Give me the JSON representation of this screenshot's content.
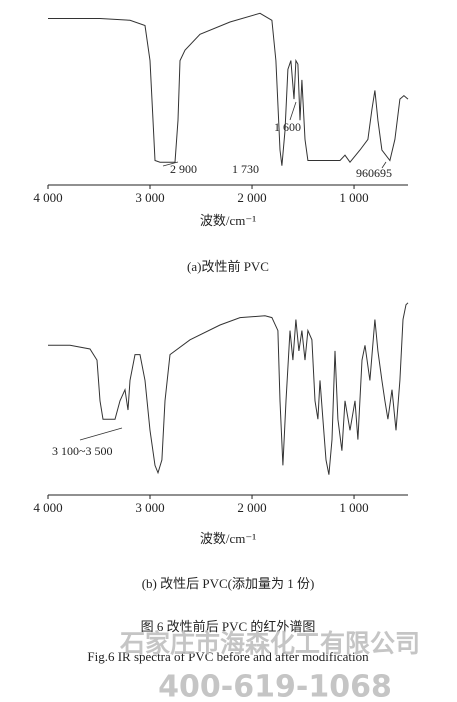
{
  "chart_data": [
    {
      "type": "line",
      "xlabel": "波数/cm⁻¹",
      "caption": "(a)改性前 PVC",
      "xlim": [
        4000,
        471
      ],
      "ylim": [
        0,
        105
      ],
      "xticks": [
        {
          "value": 4000,
          "label": "4 000"
        },
        {
          "value": 3000,
          "label": "3 000"
        },
        {
          "value": 2000,
          "label": "2 000"
        },
        {
          "value": 1000,
          "label": "1 000"
        }
      ],
      "annotations": [
        "2 900",
        "1 730",
        "1 600",
        "960",
        "695"
      ],
      "x": [
        4000,
        3490,
        3196,
        3049,
        3000,
        2971,
        2951,
        2902,
        2755,
        2726,
        2706,
        2657,
        2510,
        2216,
        1922,
        1805,
        1766,
        1726,
        1707,
        1677,
        1648,
        1619,
        1589,
        1570,
        1550,
        1530,
        1511,
        1481,
        1452,
        1334,
        1138,
        1089,
        1040,
        942,
        864,
        825,
        795,
        766,
        727,
        648,
        599,
        550,
        511,
        471
      ],
      "series": [
        {
          "color": "#333333",
          "values": [
            95,
            95,
            94,
            91,
            71,
            37,
            14,
            13,
            13,
            37,
            71,
            77,
            86,
            93,
            98,
            94,
            71,
            20,
            11,
            31,
            66,
            71,
            49,
            71,
            69,
            37,
            60,
            26,
            14,
            14,
            14,
            17,
            13,
            20,
            26,
            43,
            54,
            37,
            20,
            14,
            26,
            49,
            51,
            49
          ]
        }
      ]
    },
    {
      "type": "line",
      "xlabel": "波数/cm⁻¹",
      "caption": "(b) 改性后 PVC(添加量为 1 份)",
      "xlim": [
        4000,
        471
      ],
      "ylim": [
        0,
        105
      ],
      "xticks": [
        {
          "value": 4000,
          "label": "4 000"
        },
        {
          "value": 3000,
          "label": "3 000"
        },
        {
          "value": 2000,
          "label": "2 000"
        },
        {
          "value": 1000,
          "label": "1 000"
        }
      ],
      "annotations": [
        "3 100~3 500"
      ],
      "x": [
        4000,
        3784,
        3588,
        3520,
        3490,
        3461,
        3343,
        3294,
        3245,
        3216,
        3196,
        3147,
        3098,
        3049,
        3000,
        2951,
        2922,
        2883,
        2853,
        2804,
        2608,
        2314,
        2118,
        1873,
        1805,
        1746,
        1726,
        1697,
        1667,
        1628,
        1599,
        1570,
        1540,
        1511,
        1481,
        1452,
        1413,
        1383,
        1354,
        1334,
        1305,
        1275,
        1246,
        1216,
        1187,
        1158,
        1119,
        1089,
        1040,
        991,
        962,
        922,
        893,
        844,
        795,
        766,
        727,
        697,
        668,
        628,
        589,
        550,
        520,
        491,
        471
      ],
      "series": [
        {
          "color": "#333333",
          "values": [
            81,
            81,
            79,
            73,
            51,
            41,
            41,
            51,
            57,
            46,
            62,
            76,
            76,
            62,
            35,
            16,
            12,
            19,
            51,
            76,
            84,
            92,
            96,
            97,
            96,
            89,
            51,
            16,
            51,
            89,
            73,
            95,
            78,
            89,
            73,
            89,
            84,
            51,
            41,
            62,
            41,
            19,
            11,
            30,
            78,
            41,
            24,
            51,
            35,
            51,
            30,
            73,
            81,
            62,
            95,
            78,
            62,
            51,
            41,
            57,
            35,
            62,
            95,
            103,
            104
          ]
        }
      ]
    }
  ],
  "figure": {
    "caption_cn": "图 6  改性前后 PVC 的红外谱图",
    "caption_en": "Fig.6   IR spectra of PVC before and after modification"
  },
  "watermark": {
    "company": "石家庄市海森化工有限公司",
    "phone": "400-619-1068"
  }
}
